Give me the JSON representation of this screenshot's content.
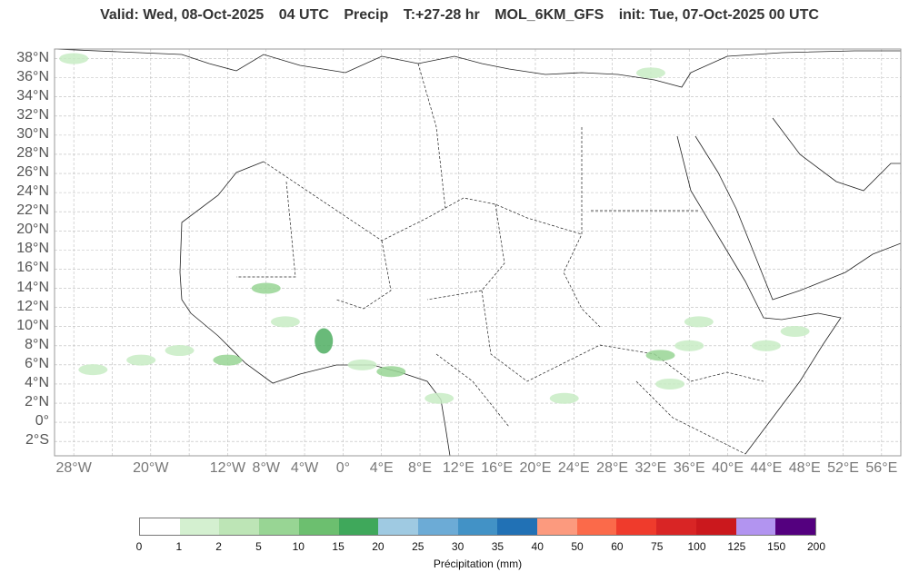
{
  "title": {
    "valid": "Valid: Wed, 08-Oct-2025",
    "time": "04 UTC",
    "field": "Precip",
    "lead": "T:+27-28 hr",
    "model": "MOL_6KM_GFS",
    "init": "init: Tue, 07-Oct-2025   00 UTC"
  },
  "lat_labels": [
    "38°N",
    "36°N",
    "34°N",
    "32°N",
    "30°N",
    "28°N",
    "26°N",
    "24°N",
    "22°N",
    "20°N",
    "18°N",
    "16°N",
    "14°N",
    "12°N",
    "10°N",
    "8°N",
    "6°N",
    "4°N",
    "2°N",
    "0°",
    "2°S"
  ],
  "lon_labels": [
    "28°W",
    "20°W",
    "12°W",
    "8°W",
    "4°W",
    "0°",
    "4°E",
    "8°E",
    "12°E",
    "16°E",
    "20°E",
    "24°E",
    "28°E",
    "32°E",
    "36°E",
    "40°E",
    "44°E",
    "48°E",
    "52°E",
    "56°E"
  ],
  "lon_values": [
    -28,
    -20,
    -12,
    -8,
    -4,
    0,
    4,
    8,
    12,
    16,
    20,
    24,
    28,
    32,
    36,
    40,
    44,
    48,
    52,
    56
  ],
  "colorbar": {
    "label": "Précipitation (mm)",
    "ticks": [
      "0",
      "1",
      "2",
      "5",
      "10",
      "15",
      "20",
      "25",
      "30",
      "35",
      "40",
      "50",
      "60",
      "75",
      "100",
      "125",
      "150",
      "200"
    ],
    "colors": [
      "#ffffff",
      "#d4f0d0",
      "#bde5b6",
      "#98d594",
      "#6cbf6f",
      "#3fa85b",
      "#9fcae2",
      "#6cabd6",
      "#4292c6",
      "#2171b5",
      "#fc9a7e",
      "#fb6a4a",
      "#ef3b2c",
      "#d92525",
      "#cb181d",
      "#b294f0",
      "#54007f"
    ]
  },
  "precip_areas": [
    {
      "lon": -26,
      "lat": 5.5,
      "level": "light"
    },
    {
      "lon": -21,
      "lat": 6.5,
      "level": "light"
    },
    {
      "lon": -17,
      "lat": 7.5,
      "level": "light"
    },
    {
      "lon": -12,
      "lat": 6.5,
      "level": "moderate"
    },
    {
      "lon": -8,
      "lat": 14,
      "level": "moderate"
    },
    {
      "lon": -6,
      "lat": 10.5,
      "level": "light"
    },
    {
      "lon": -2,
      "lat": 8.5,
      "level": "heavy"
    },
    {
      "lon": 2,
      "lat": 6,
      "level": "light"
    },
    {
      "lon": 5,
      "lat": 5.3,
      "level": "moderate"
    },
    {
      "lon": 10,
      "lat": 2.5,
      "level": "light"
    },
    {
      "lon": 23,
      "lat": 2.5,
      "level": "light"
    },
    {
      "lon": 33,
      "lat": 7,
      "level": "moderate"
    },
    {
      "lon": 36,
      "lat": 8,
      "level": "light"
    },
    {
      "lon": 34,
      "lat": 4,
      "level": "light"
    },
    {
      "lon": 37,
      "lat": 10.5,
      "level": "light"
    },
    {
      "lon": 44,
      "lat": 8,
      "level": "light"
    },
    {
      "lon": 47,
      "lat": 9.5,
      "level": "light"
    },
    {
      "lon": 32,
      "lat": 36.5,
      "level": "light"
    },
    {
      "lon": -28,
      "lat": 38,
      "level": "light"
    }
  ]
}
